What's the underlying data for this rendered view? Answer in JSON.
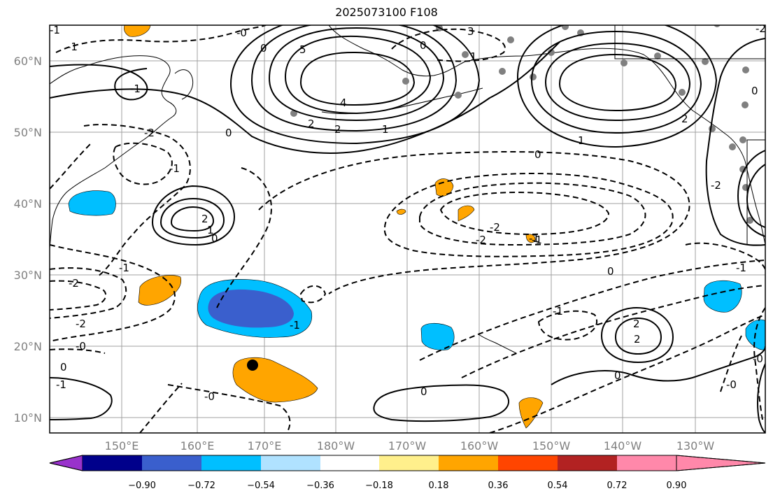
{
  "title": "2025073100 F108",
  "map": {
    "lat_labels": [
      "60°N",
      "50°N",
      "40°N",
      "30°N",
      "20°N",
      "10°N"
    ],
    "lon_labels": [
      "150°E",
      "160°E",
      "170°E",
      "180°W",
      "170°W",
      "160°W",
      "150°W",
      "140°W",
      "130°W"
    ]
  },
  "colorbar": {
    "tick_labels": [
      "−0.90",
      "−0.72",
      "−0.54",
      "−0.36",
      "−0.18",
      "0.18",
      "0.36",
      "0.54",
      "0.72",
      "0.90"
    ],
    "colors": [
      "#9932cc",
      "#00008b",
      "#3a5fcd",
      "#00bfff",
      "#b0e2ff",
      "#ffffff",
      "#fff08c",
      "#ffa500",
      "#ff4500",
      "#b22222",
      "#ff88aa"
    ]
  },
  "fill_colors": {
    "dark_blue": "#3a5fcd",
    "blue": "#00bfff",
    "orange": "#ffa500"
  },
  "contour_labels": [
    "0",
    "3",
    "1",
    "0",
    "-0",
    "5",
    "4",
    "2",
    "2",
    "1",
    "-1",
    "-2",
    "-1",
    "0",
    "-2",
    "-2",
    "-1",
    "-2",
    "2",
    "1",
    "0",
    "-1",
    "-2",
    "-2",
    "-0",
    "0",
    "-0",
    "0",
    "-1",
    "-1",
    "2",
    "2",
    "0",
    "0",
    "0",
    "-0",
    "-1",
    "-1",
    "1",
    "2",
    "-1",
    "-0",
    "0",
    "-2",
    "-1",
    "-1"
  ]
}
